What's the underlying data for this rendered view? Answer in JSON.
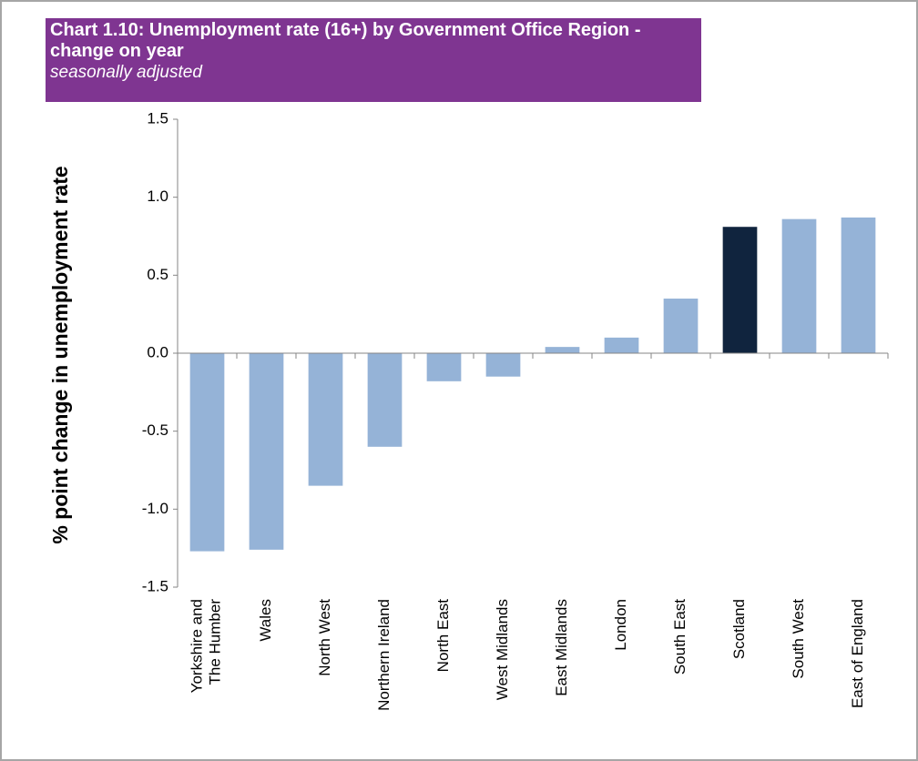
{
  "chart_data": {
    "type": "bar",
    "title": "Chart 1.10: Unemployment rate (16+) by Government Office Region - change on year",
    "subtitle": "seasonally adjusted",
    "y_label": "% point change in unemployment rate",
    "categories": [
      "Yorkshire and The Humber",
      "Wales",
      "North West",
      "Northern Ireland",
      "North East",
      "West Midlands",
      "East Midlands",
      "London",
      "South East",
      "Scotland",
      "South West",
      "East of England"
    ],
    "values": [
      -1.27,
      -1.26,
      -0.85,
      -0.6,
      -0.18,
      -0.15,
      0.04,
      0.1,
      0.35,
      0.81,
      0.86,
      0.87
    ],
    "colors": [
      "#95b3d7",
      "#95b3d7",
      "#95b3d7",
      "#95b3d7",
      "#95b3d7",
      "#95b3d7",
      "#95b3d7",
      "#95b3d7",
      "#95b3d7",
      "#10243e",
      "#95b3d7",
      "#95b3d7"
    ],
    "ylim": [
      -1.5,
      1.5
    ],
    "yticks": [
      {
        "value": -1.5,
        "label": "-1.5"
      },
      {
        "value": -1,
        "label": "-1.0"
      },
      {
        "value": -0.5,
        "label": "-0.5"
      },
      {
        "value": 0,
        "label": "0.0"
      },
      {
        "value": 0.5,
        "label": "0.5"
      },
      {
        "value": 1,
        "label": "1.0"
      },
      {
        "value": 1.5,
        "label": "1.5"
      }
    ],
    "grid": false
  }
}
